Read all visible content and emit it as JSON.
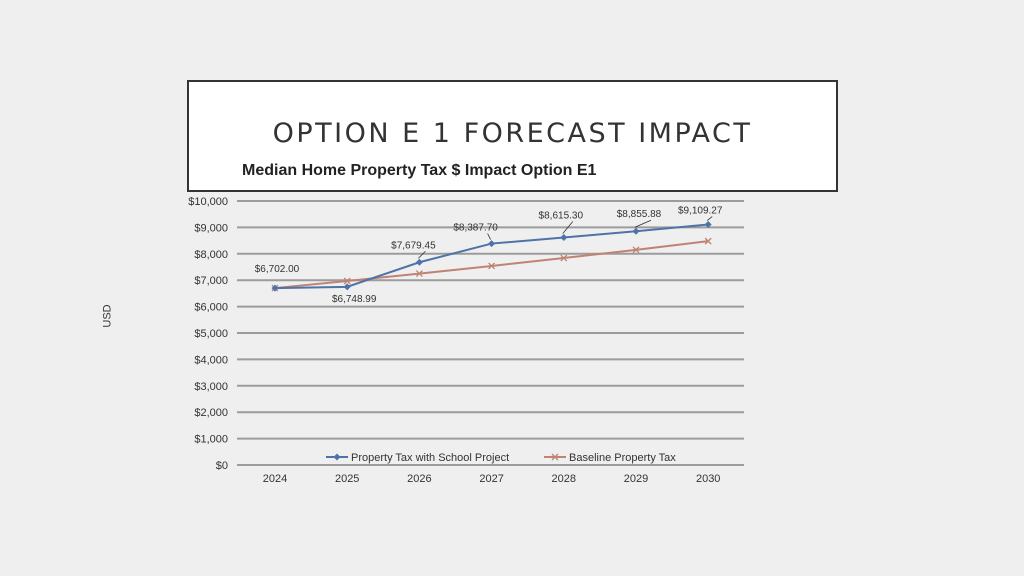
{
  "slide": {
    "title": "OPTION E 1 FORECAST IMPACT"
  },
  "colors": {
    "series1": "#4e73a8",
    "series2": "#c08272",
    "grid": "#9c9c9c"
  },
  "chart_data": {
    "type": "line",
    "title": "Median Home Property Tax $ Impact Option E1",
    "ylabel": "USD",
    "xlabel": "",
    "categories": [
      "2024",
      "2025",
      "2026",
      "2027",
      "2028",
      "2029",
      "2030"
    ],
    "ylim": [
      0,
      10000
    ],
    "yticks": [
      0,
      1000,
      2000,
      3000,
      4000,
      5000,
      6000,
      7000,
      8000,
      9000,
      10000
    ],
    "ytick_labels": [
      "$0",
      "$1,000",
      "$2,000",
      "$3,000",
      "$4,000",
      "$5,000",
      "$6,000",
      "$7,000",
      "$8,000",
      "$9,000",
      "$10,000"
    ],
    "grid": true,
    "legend_position": "bottom",
    "series": [
      {
        "name": "Property Tax with School Project",
        "values": [
          6702.0,
          6748.99,
          7679.45,
          8387.7,
          8615.3,
          8855.88,
          9109.27
        ],
        "labels": [
          "$6,702.00",
          "$6,748.99",
          "$7,679.45",
          "$8,387.70",
          "$8,615.30",
          "$8,855.88",
          "$9,109.27"
        ],
        "marker": "diamond"
      },
      {
        "name": "Baseline Property Tax",
        "values": [
          6702,
          6970,
          7250,
          7540,
          7840,
          8150,
          8480
        ],
        "marker": "x"
      }
    ]
  }
}
